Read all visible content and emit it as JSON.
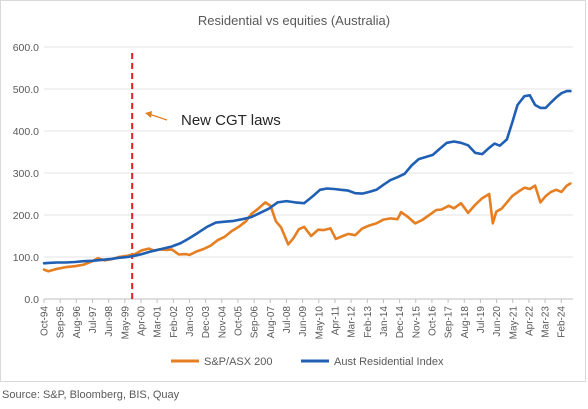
{
  "source": "Source: S&P, Bloomberg, BIS, Quay",
  "chart_data": {
    "type": "line",
    "title": "Residential vs equities (Australia)",
    "xlabel": "",
    "ylabel": "",
    "ylim": [
      0,
      600
    ],
    "y_ticks": [
      "0.0",
      "100.0",
      "200.0",
      "300.0",
      "400.0",
      "500.0",
      "600.0"
    ],
    "grid": "horizontal",
    "legend_position": "bottom",
    "x_tick_labels": [
      "Oct-94",
      "Sep-95",
      "Aug-96",
      "Jul-97",
      "Jun-98",
      "May-99",
      "Apr-00",
      "Mar-01",
      "Feb-02",
      "Jan-03",
      "Dec-03",
      "Nov-04",
      "Oct-05",
      "Sep-06",
      "Aug-07",
      "Jul-08",
      "Jun-09",
      "May-10",
      "Apr-11",
      "Mar-12",
      "Feb-13",
      "Jan-14",
      "Dec-14",
      "Nov-15",
      "Oct-16",
      "Sep-17",
      "Aug-18",
      "Jul-19",
      "Jun-20",
      "May-21",
      "Apr-22",
      "Mar-23",
      "Feb-24"
    ],
    "annotation": {
      "text": "New CGT laws",
      "x_date": "1999.75"
    },
    "colors": {
      "sp_asx": "#e67e22",
      "residential": "#1f5fb4",
      "cgt_line": "#e02020"
    },
    "series": [
      {
        "name": "S&P/ASX 200",
        "x": [
          1994.75,
          1995.0,
          1995.5,
          1996.0,
          1996.5,
          1997.0,
          1997.5,
          1997.8,
          1998.2,
          1998.6,
          1999.0,
          1999.5,
          1999.9,
          2000.3,
          2000.7,
          2001.0,
          2001.3,
          2001.7,
          2002.0,
          2002.4,
          2002.8,
          2003.0,
          2003.4,
          2003.8,
          2004.2,
          2004.6,
          2005.0,
          2005.4,
          2005.8,
          2006.2,
          2006.5,
          2006.9,
          2007.3,
          2007.6,
          2007.9,
          2008.2,
          2008.6,
          2008.9,
          2009.2,
          2009.5,
          2009.9,
          2010.3,
          2010.6,
          2011.0,
          2011.3,
          2011.7,
          2012.0,
          2012.4,
          2012.8,
          2013.2,
          2013.6,
          2014.0,
          2014.4,
          2014.8,
          2015.0,
          2015.4,
          2015.8,
          2016.2,
          2016.6,
          2017.0,
          2017.3,
          2017.7,
          2018.0,
          2018.4,
          2018.8,
          2019.2,
          2019.6,
          2020.0,
          2020.2,
          2020.4,
          2020.7,
          2021.0,
          2021.3,
          2021.7,
          2022.0,
          2022.3,
          2022.6,
          2022.9,
          2023.2,
          2023.5,
          2023.8,
          2024.1,
          2024.4,
          2024.6
        ],
        "values": [
          70,
          66,
          72,
          76,
          78,
          82,
          90,
          97,
          92,
          95,
          100,
          103,
          107,
          116,
          120,
          115,
          118,
          117,
          118,
          106,
          107,
          105,
          113,
          119,
          127,
          140,
          148,
          162,
          172,
          185,
          202,
          215,
          230,
          222,
          185,
          170,
          130,
          145,
          166,
          172,
          150,
          165,
          164,
          168,
          143,
          150,
          155,
          152,
          168,
          175,
          180,
          189,
          192,
          190,
          207,
          195,
          180,
          188,
          200,
          212,
          213,
          222,
          216,
          228,
          205,
          224,
          240,
          250,
          180,
          208,
          215,
          230,
          245,
          257,
          265,
          262,
          270,
          230,
          245,
          255,
          260,
          255,
          270,
          275
        ]
      },
      {
        "name": "Aust Residential Index",
        "x": [
          1994.75,
          1995.0,
          1995.5,
          1996.0,
          1996.5,
          1997.0,
          1997.5,
          1998.0,
          1998.5,
          1999.0,
          1999.5,
          1999.9,
          2000.3,
          2000.7,
          2001.0,
          2001.5,
          2002.0,
          2002.5,
          2003.0,
          2003.5,
          2004.0,
          2004.5,
          2005.0,
          2005.5,
          2006.0,
          2006.5,
          2007.0,
          2007.5,
          2008.0,
          2008.5,
          2009.0,
          2009.5,
          2010.0,
          2010.4,
          2010.8,
          2011.2,
          2011.6,
          2012.0,
          2012.4,
          2012.8,
          2013.2,
          2013.6,
          2014.0,
          2014.4,
          2014.8,
          2015.2,
          2015.6,
          2016.0,
          2016.4,
          2016.8,
          2017.2,
          2017.6,
          2018.0,
          2018.4,
          2018.8,
          2019.2,
          2019.6,
          2020.0,
          2020.3,
          2020.6,
          2021.0,
          2021.3,
          2021.6,
          2022.0,
          2022.3,
          2022.6,
          2022.9,
          2023.2,
          2023.5,
          2023.8,
          2024.1,
          2024.4,
          2024.6
        ],
        "values": [
          85,
          86,
          87,
          87,
          88,
          90,
          91,
          93,
          95,
          98,
          100,
          103,
          107,
          112,
          115,
          120,
          125,
          133,
          145,
          158,
          172,
          182,
          184,
          186,
          190,
          195,
          205,
          215,
          230,
          233,
          230,
          228,
          245,
          260,
          263,
          262,
          260,
          258,
          252,
          251,
          255,
          260,
          272,
          283,
          290,
          298,
          318,
          333,
          338,
          343,
          358,
          372,
          375,
          372,
          366,
          348,
          345,
          360,
          370,
          365,
          380,
          420,
          462,
          483,
          485,
          462,
          455,
          455,
          468,
          480,
          490,
          495,
          495
        ]
      }
    ]
  }
}
